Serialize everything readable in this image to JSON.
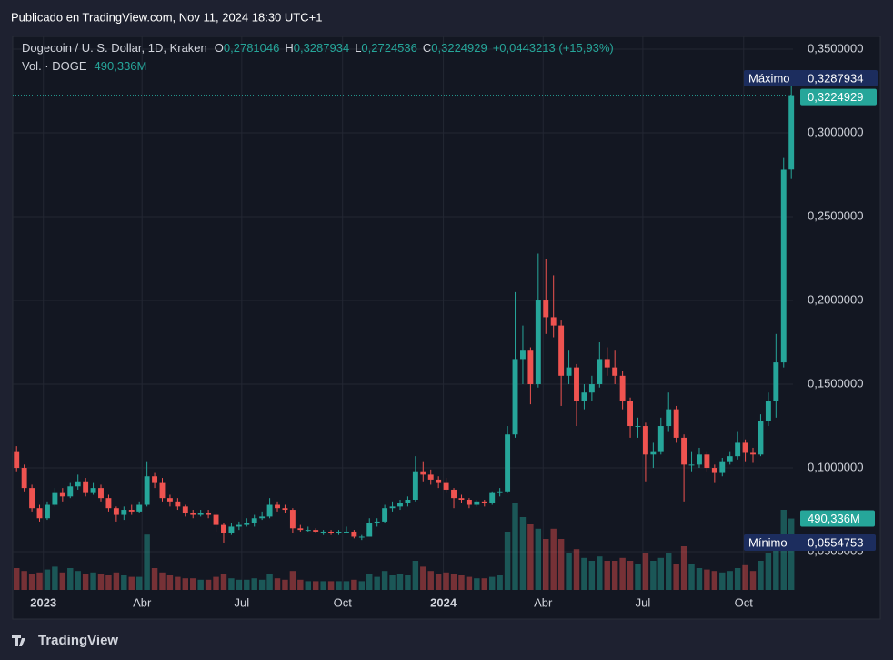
{
  "chart_data": {
    "type": "candlestick",
    "publisher": "Publicado en TradingView.com, Nov 11, 2024 18:30 UTC+1",
    "title": "Dogecoin / U. S. Dollar, 1D, Kraken",
    "ohlc_keys": [
      "O",
      "H",
      "L",
      "C"
    ],
    "last_labels": [
      "0,2781046",
      "0,3287934",
      "0,2724536",
      "0,3224929"
    ],
    "change_label": "+0,0443213 (+15,93%)",
    "up_color": "#26a69a",
    "down_color": "#ef5350",
    "grid": true,
    "xlim": [
      -28,
      684
    ],
    "ylim": [
      0.0272,
      0.3576
    ],
    "yticks": [
      {
        "value": 0.05,
        "label": "0,0500000"
      },
      {
        "value": 0.1,
        "label": "0,1000000"
      },
      {
        "value": 0.15,
        "label": "0,1500000"
      },
      {
        "value": 0.2,
        "label": "0,2000000"
      },
      {
        "value": 0.25,
        "label": "0,2500000"
      },
      {
        "value": 0.3,
        "label": "0,3000000"
      },
      {
        "value": 0.35,
        "label": "0,3500000"
      }
    ],
    "xticks": [
      {
        "value": 0,
        "label": "2023"
      },
      {
        "value": 90,
        "label": "Abr"
      },
      {
        "value": 181,
        "label": "Jul"
      },
      {
        "value": 273,
        "label": "Oct"
      },
      {
        "value": 365,
        "label": "2024"
      },
      {
        "value": 456,
        "label": "Abr"
      },
      {
        "value": 547,
        "label": "Jul"
      },
      {
        "value": 639,
        "label": "Oct"
      }
    ],
    "x": [
      -28,
      -21,
      -14,
      -7,
      0,
      7,
      14,
      21,
      28,
      35,
      42,
      49,
      56,
      63,
      70,
      77,
      84,
      91,
      98,
      105,
      112,
      119,
      126,
      133,
      140,
      147,
      154,
      161,
      168,
      175,
      182,
      189,
      196,
      203,
      210,
      217,
      224,
      231,
      238,
      245,
      252,
      259,
      266,
      273,
      280,
      287,
      294,
      301,
      308,
      315,
      322,
      329,
      336,
      343,
      350,
      357,
      364,
      371,
      378,
      385,
      392,
      399,
      406,
      413,
      420,
      427,
      434,
      441,
      448,
      455,
      462,
      469,
      476,
      483,
      490,
      497,
      504,
      511,
      518,
      525,
      532,
      539,
      546,
      553,
      560,
      567,
      574,
      581,
      588,
      595,
      602,
      609,
      616,
      623,
      630,
      637,
      644,
      651,
      658,
      665,
      672,
      679
    ],
    "ohlc": [
      [
        0.11,
        0.113,
        0.098,
        0.1
      ],
      [
        0.1,
        0.102,
        0.086,
        0.088
      ],
      [
        0.088,
        0.09,
        0.074,
        0.076
      ],
      [
        0.076,
        0.078,
        0.068,
        0.07
      ],
      [
        0.07,
        0.08,
        0.069,
        0.078
      ],
      [
        0.078,
        0.088,
        0.077,
        0.085
      ],
      [
        0.085,
        0.088,
        0.08,
        0.083
      ],
      [
        0.083,
        0.091,
        0.082,
        0.089
      ],
      [
        0.089,
        0.096,
        0.087,
        0.092
      ],
      [
        0.092,
        0.094,
        0.083,
        0.085
      ],
      [
        0.085,
        0.091,
        0.084,
        0.088
      ],
      [
        0.088,
        0.09,
        0.08,
        0.082
      ],
      [
        0.082,
        0.084,
        0.074,
        0.076
      ],
      [
        0.076,
        0.077,
        0.068,
        0.072
      ],
      [
        0.072,
        0.077,
        0.069,
        0.075
      ],
      [
        0.075,
        0.078,
        0.072,
        0.074
      ],
      [
        0.074,
        0.08,
        0.073,
        0.078
      ],
      [
        0.078,
        0.104,
        0.077,
        0.095
      ],
      [
        0.095,
        0.097,
        0.088,
        0.091
      ],
      [
        0.091,
        0.094,
        0.08,
        0.082
      ],
      [
        0.082,
        0.084,
        0.077,
        0.08
      ],
      [
        0.08,
        0.082,
        0.075,
        0.077
      ],
      [
        0.077,
        0.078,
        0.071,
        0.073
      ],
      [
        0.073,
        0.075,
        0.07,
        0.072
      ],
      [
        0.072,
        0.075,
        0.071,
        0.073
      ],
      [
        0.073,
        0.075,
        0.07,
        0.072
      ],
      [
        0.072,
        0.073,
        0.062,
        0.066
      ],
      [
        0.066,
        0.067,
        0.0554753,
        0.061
      ],
      [
        0.061,
        0.067,
        0.06,
        0.065
      ],
      [
        0.065,
        0.068,
        0.063,
        0.066
      ],
      [
        0.066,
        0.07,
        0.065,
        0.067
      ],
      [
        0.067,
        0.072,
        0.065,
        0.07
      ],
      [
        0.07,
        0.074,
        0.069,
        0.071
      ],
      [
        0.071,
        0.082,
        0.07,
        0.078
      ],
      [
        0.078,
        0.08,
        0.074,
        0.076
      ],
      [
        0.076,
        0.078,
        0.073,
        0.075
      ],
      [
        0.075,
        0.076,
        0.061,
        0.064
      ],
      [
        0.064,
        0.066,
        0.062,
        0.063
      ],
      [
        0.063,
        0.065,
        0.062,
        0.063
      ],
      [
        0.063,
        0.064,
        0.061,
        0.062
      ],
      [
        0.062,
        0.063,
        0.06,
        0.062
      ],
      [
        0.062,
        0.063,
        0.06,
        0.061
      ],
      [
        0.061,
        0.063,
        0.06,
        0.062
      ],
      [
        0.062,
        0.065,
        0.061,
        0.062
      ],
      [
        0.062,
        0.063,
        0.058,
        0.059
      ],
      [
        0.059,
        0.06,
        0.057,
        0.059
      ],
      [
        0.059,
        0.07,
        0.059,
        0.067
      ],
      [
        0.067,
        0.07,
        0.065,
        0.068
      ],
      [
        0.068,
        0.078,
        0.067,
        0.076
      ],
      [
        0.076,
        0.08,
        0.074,
        0.077
      ],
      [
        0.077,
        0.081,
        0.075,
        0.079
      ],
      [
        0.079,
        0.083,
        0.077,
        0.081
      ],
      [
        0.081,
        0.107,
        0.08,
        0.098
      ],
      [
        0.098,
        0.104,
        0.092,
        0.096
      ],
      [
        0.096,
        0.099,
        0.09,
        0.093
      ],
      [
        0.093,
        0.095,
        0.088,
        0.091
      ],
      [
        0.091,
        0.094,
        0.085,
        0.087
      ],
      [
        0.087,
        0.088,
        0.076,
        0.082
      ],
      [
        0.082,
        0.084,
        0.079,
        0.081
      ],
      [
        0.081,
        0.082,
        0.076,
        0.078
      ],
      [
        0.078,
        0.081,
        0.077,
        0.08
      ],
      [
        0.08,
        0.081,
        0.077,
        0.079
      ],
      [
        0.079,
        0.086,
        0.078,
        0.085
      ],
      [
        0.085,
        0.088,
        0.083,
        0.086
      ],
      [
        0.086,
        0.125,
        0.085,
        0.12
      ],
      [
        0.12,
        0.205,
        0.118,
        0.165
      ],
      [
        0.165,
        0.185,
        0.15,
        0.17
      ],
      [
        0.17,
        0.172,
        0.138,
        0.15
      ],
      [
        0.15,
        0.228,
        0.148,
        0.2
      ],
      [
        0.2,
        0.225,
        0.18,
        0.19
      ],
      [
        0.19,
        0.215,
        0.178,
        0.185
      ],
      [
        0.185,
        0.188,
        0.137,
        0.155
      ],
      [
        0.155,
        0.17,
        0.15,
        0.16
      ],
      [
        0.16,
        0.162,
        0.125,
        0.14
      ],
      [
        0.14,
        0.15,
        0.135,
        0.145
      ],
      [
        0.145,
        0.155,
        0.14,
        0.15
      ],
      [
        0.15,
        0.175,
        0.148,
        0.165
      ],
      [
        0.165,
        0.172,
        0.155,
        0.16
      ],
      [
        0.16,
        0.17,
        0.15,
        0.155
      ],
      [
        0.155,
        0.158,
        0.135,
        0.14
      ],
      [
        0.14,
        0.142,
        0.118,
        0.125
      ],
      [
        0.125,
        0.13,
        0.118,
        0.125
      ],
      [
        0.125,
        0.127,
        0.092,
        0.108
      ],
      [
        0.108,
        0.115,
        0.1,
        0.11
      ],
      [
        0.11,
        0.13,
        0.108,
        0.125
      ],
      [
        0.125,
        0.145,
        0.122,
        0.135
      ],
      [
        0.135,
        0.137,
        0.115,
        0.118
      ],
      [
        0.118,
        0.12,
        0.08,
        0.102
      ],
      [
        0.102,
        0.11,
        0.098,
        0.102
      ],
      [
        0.102,
        0.112,
        0.1,
        0.108
      ],
      [
        0.108,
        0.11,
        0.098,
        0.1
      ],
      [
        0.1,
        0.102,
        0.091,
        0.097
      ],
      [
        0.097,
        0.106,
        0.095,
        0.104
      ],
      [
        0.104,
        0.11,
        0.102,
        0.107
      ],
      [
        0.107,
        0.122,
        0.105,
        0.115
      ],
      [
        0.115,
        0.117,
        0.104,
        0.109
      ],
      [
        0.109,
        0.112,
        0.103,
        0.108
      ],
      [
        0.108,
        0.132,
        0.107,
        0.128
      ],
      [
        0.128,
        0.145,
        0.125,
        0.14
      ],
      [
        0.14,
        0.18,
        0.13,
        0.163
      ],
      [
        0.163,
        0.285,
        0.16,
        0.278
      ],
      [
        0.2781046,
        0.3287934,
        0.2724536,
        0.3224929
      ]
    ],
    "last_price_label": "0,3224929",
    "high_marker": {
      "name": "Máximo",
      "value": 0.3287934,
      "label": "0,3287934"
    },
    "low_marker": {
      "name": "Mínimo",
      "value": 0.0554753,
      "label": "0,0554753"
    },
    "volume": {
      "title": "Vol. · DOGE",
      "last_label": "490,336M",
      "vlim": [
        0,
        3800
      ],
      "values": [
        150,
        130,
        110,
        120,
        140,
        160,
        120,
        150,
        130,
        110,
        120,
        110,
        100,
        120,
        100,
        90,
        90,
        380,
        150,
        120,
        100,
        90,
        80,
        80,
        70,
        70,
        90,
        110,
        80,
        70,
        70,
        80,
        70,
        110,
        80,
        70,
        130,
        70,
        60,
        60,
        60,
        60,
        60,
        60,
        70,
        60,
        110,
        90,
        130,
        100,
        110,
        100,
        200,
        160,
        130,
        110,
        120,
        110,
        100,
        90,
        80,
        80,
        90,
        100,
        400,
        600,
        500,
        450,
        420,
        350,
        420,
        350,
        250,
        280,
        220,
        200,
        230,
        200,
        200,
        220,
        200,
        180,
        250,
        200,
        220,
        250,
        180,
        300,
        180,
        150,
        140,
        130,
        120,
        130,
        150,
        170,
        130,
        200,
        250,
        350,
        550,
        490.336
      ]
    },
    "brand": "TradingView"
  }
}
